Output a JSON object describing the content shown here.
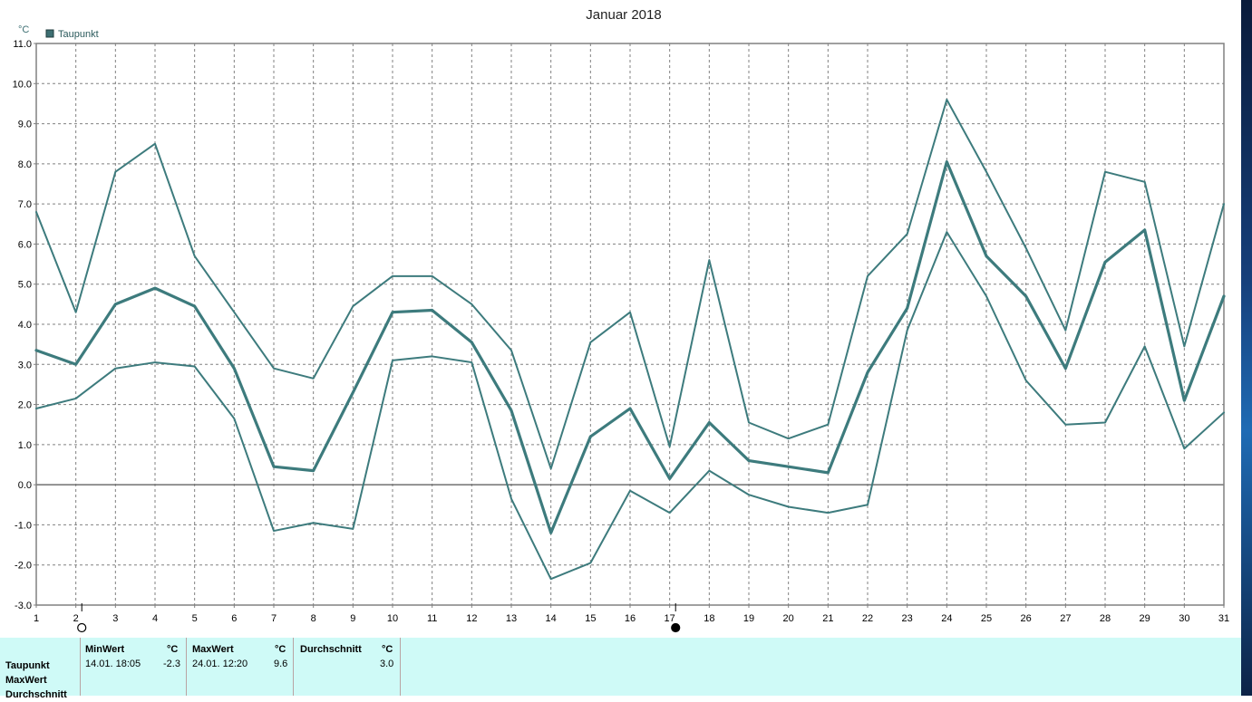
{
  "chart_data": {
    "type": "line",
    "title": "Januar 2018",
    "yunit": "°C",
    "ylim": [
      -3.0,
      11.0
    ],
    "yticks": [
      "-3.0",
      "-2.0",
      "-1.0",
      "0.0",
      "1.0",
      "2.0",
      "3.0",
      "4.0",
      "5.0",
      "6.0",
      "7.0",
      "8.0",
      "9.0",
      "10.0",
      "11.0"
    ],
    "x": [
      1,
      2,
      3,
      4,
      5,
      6,
      7,
      8,
      9,
      10,
      11,
      12,
      13,
      14,
      15,
      16,
      17,
      18,
      19,
      20,
      21,
      22,
      23,
      24,
      25,
      26,
      27,
      28,
      29,
      30,
      31
    ],
    "xlabels": [
      "1",
      "2",
      "3",
      "4",
      "5",
      "6",
      "7",
      "8",
      "9",
      "10",
      "11",
      "12",
      "13",
      "14",
      "15",
      "16",
      "17",
      "18",
      "19",
      "20",
      "21",
      "22",
      "23",
      "24",
      "25",
      "26",
      "27",
      "28",
      "29",
      "30",
      "31"
    ],
    "legend": {
      "label": "Taupunkt",
      "color": "#3d6f72",
      "position": "top-left"
    },
    "grid": true,
    "line_color": "#3d7b7d",
    "series": [
      {
        "values": [
          6.8,
          4.3,
          7.8,
          8.5,
          5.7,
          4.3,
          2.9,
          2.65,
          4.45,
          5.2,
          5.2,
          4.5,
          3.35,
          0.4,
          3.55,
          4.3,
          0.95,
          5.6,
          1.55,
          1.15,
          1.5,
          5.2,
          6.25,
          9.6,
          7.8,
          5.9,
          3.85,
          7.8,
          7.55,
          3.45,
          7.0
        ]
      },
      {
        "values": [
          3.35,
          3.0,
          4.5,
          4.9,
          4.45,
          2.9,
          0.45,
          0.35,
          2.3,
          4.3,
          4.35,
          3.55,
          1.85,
          -1.2,
          1.2,
          1.9,
          0.15,
          1.55,
          0.6,
          0.45,
          0.3,
          2.8,
          4.4,
          8.05,
          5.7,
          4.7,
          2.9,
          5.55,
          6.35,
          2.1,
          4.7
        ]
      },
      {
        "values": [
          1.9,
          2.15,
          2.9,
          3.05,
          2.95,
          1.65,
          -1.15,
          -0.95,
          -1.1,
          3.1,
          3.2,
          3.05,
          -0.35,
          -2.35,
          -1.95,
          -0.15,
          -0.7,
          0.35,
          -0.25,
          -0.55,
          -0.7,
          -0.5,
          3.85,
          6.3,
          4.7,
          2.6,
          1.5,
          1.55,
          3.45,
          0.9,
          1.8
        ]
      }
    ],
    "moon_markers": [
      {
        "day": 2,
        "phase": "full-moon"
      },
      {
        "day": 17,
        "phase": "new-moon"
      }
    ]
  },
  "stats_panel": {
    "row_labels": [
      "Taupunkt",
      "MaxWert",
      "Durchschnitt"
    ],
    "min": {
      "header": "MinWert",
      "unit": "°C",
      "datetime": "14.01.  18:05",
      "value": "-2.3"
    },
    "max": {
      "header": "MaxWert",
      "unit": "°C",
      "datetime": "24.01.  12:20",
      "value": "9.6"
    },
    "avg": {
      "header": "Durchschnitt",
      "unit": "°C",
      "value": "3.0"
    }
  }
}
